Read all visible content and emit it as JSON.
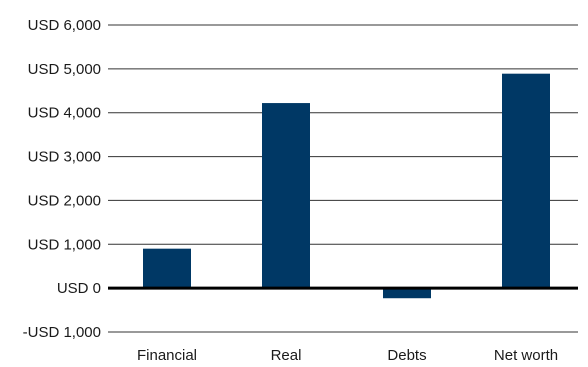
{
  "chart_data": {
    "type": "bar",
    "categories": [
      "Financial",
      "Real",
      "Debts",
      "Net worth"
    ],
    "values": [
      900,
      4220,
      -230,
      4890
    ],
    "y_ticks": [
      {
        "value": 6000,
        "label": "USD 6,000"
      },
      {
        "value": 5000,
        "label": "USD 5,000"
      },
      {
        "value": 4000,
        "label": "USD 4,000"
      },
      {
        "value": 3000,
        "label": "USD 3,000"
      },
      {
        "value": 2000,
        "label": "USD 2,000"
      },
      {
        "value": 1000,
        "label": "USD 1,000"
      },
      {
        "value": 0,
        "label": "USD 0"
      },
      {
        "value": -1000,
        "label": "-USD 1,000"
      }
    ],
    "ylim": [
      -1000,
      6000
    ],
    "title": "",
    "xlabel": "",
    "ylabel": "",
    "grid": true,
    "legend": "none",
    "bar_color": "#003865",
    "grid_color": "#333333",
    "zero_line_color": "#000000"
  }
}
